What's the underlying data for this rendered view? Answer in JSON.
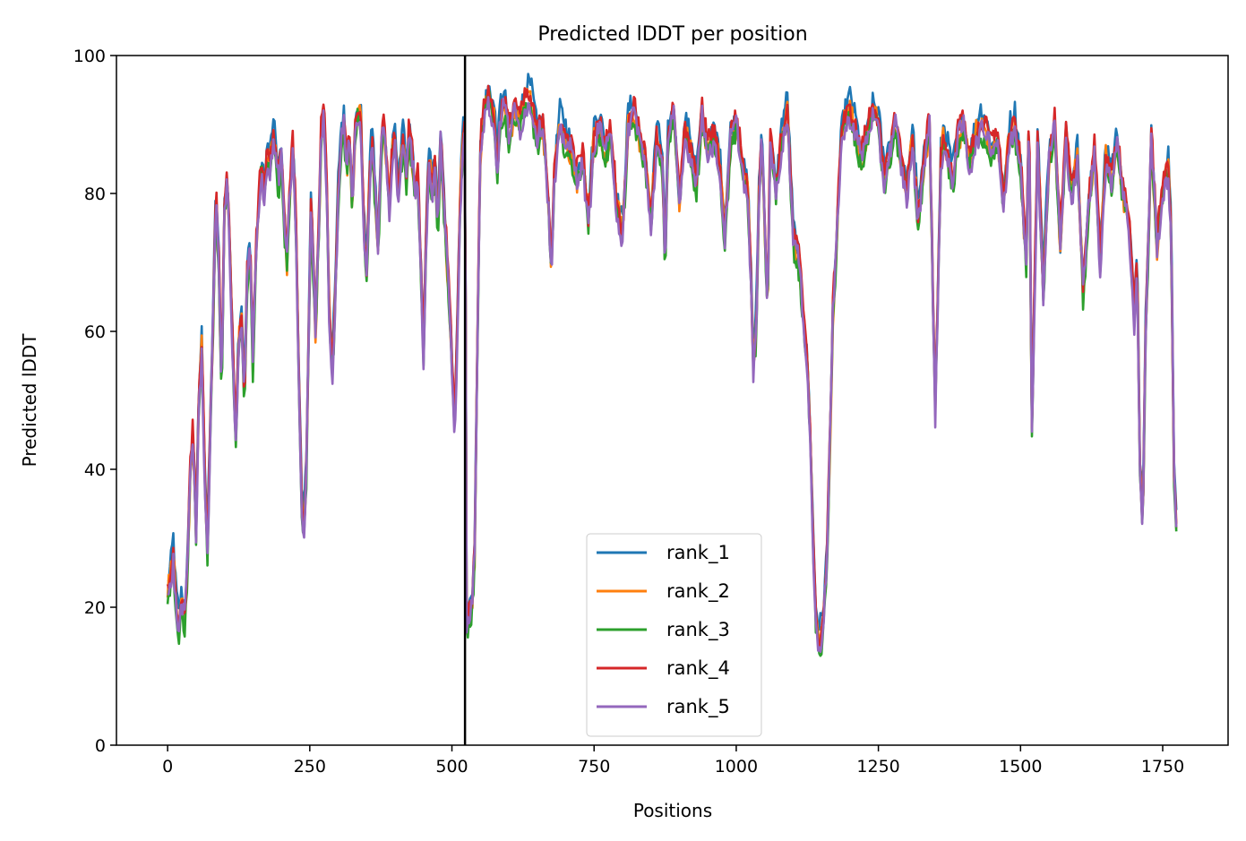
{
  "chart_data": {
    "type": "line",
    "title": "Predicted lDDT per position",
    "xlabel": "Positions",
    "ylabel": "Predicted lDDT",
    "xlim": [
      -90,
      1865
    ],
    "ylim": [
      0,
      100
    ],
    "xticks": [
      0,
      250,
      500,
      750,
      1000,
      1250,
      1500,
      1750
    ],
    "yticks": [
      0,
      20,
      40,
      60,
      80,
      100
    ],
    "xtick_labels": [
      "0",
      "250",
      "500",
      "750",
      "1000",
      "1250",
      "1500",
      "1750"
    ],
    "ytick_labels": [
      "0",
      "20",
      "40",
      "60",
      "80",
      "100"
    ],
    "grid": false,
    "legend_position": "lower-center",
    "vertical_line": {
      "x": 523,
      "color": "#000000"
    },
    "x_range": [
      0,
      1775
    ],
    "base_profile": {
      "x": [
        0,
        5,
        10,
        15,
        20,
        25,
        30,
        35,
        40,
        45,
        50,
        55,
        60,
        65,
        70,
        75,
        80,
        85,
        90,
        95,
        100,
        105,
        110,
        115,
        120,
        125,
        130,
        135,
        140,
        145,
        150,
        155,
        160,
        165,
        170,
        175,
        180,
        185,
        190,
        195,
        200,
        205,
        210,
        215,
        220,
        225,
        228,
        232,
        236,
        240,
        244,
        248,
        252,
        256,
        260,
        265,
        270,
        275,
        280,
        285,
        290,
        295,
        300,
        305,
        310,
        315,
        320,
        325,
        330,
        335,
        340,
        345,
        350,
        355,
        360,
        365,
        370,
        375,
        380,
        385,
        390,
        395,
        400,
        405,
        410,
        415,
        420,
        425,
        430,
        435,
        440,
        445,
        450,
        455,
        460,
        465,
        470,
        475,
        480,
        485,
        490,
        495,
        500,
        505,
        510,
        515,
        520,
        523,
        526,
        530,
        535,
        540,
        545,
        550,
        555,
        560,
        565,
        570,
        575,
        580,
        585,
        590,
        595,
        600,
        610,
        620,
        630,
        640,
        650,
        660,
        670,
        675,
        680,
        690,
        700,
        710,
        720,
        730,
        740,
        750,
        760,
        770,
        780,
        790,
        800,
        810,
        820,
        830,
        840,
        850,
        860,
        870,
        875,
        880,
        890,
        900,
        910,
        920,
        930,
        940,
        950,
        960,
        970,
        980,
        990,
        1000,
        1010,
        1020,
        1025,
        1030,
        1035,
        1040,
        1045,
        1050,
        1055,
        1060,
        1070,
        1080,
        1090,
        1100,
        1110,
        1120,
        1125,
        1130,
        1135,
        1140,
        1145,
        1150,
        1155,
        1160,
        1165,
        1170,
        1175,
        1180,
        1185,
        1190,
        1195,
        1200,
        1210,
        1220,
        1230,
        1240,
        1250,
        1260,
        1270,
        1280,
        1290,
        1300,
        1310,
        1320,
        1330,
        1340,
        1350,
        1360,
        1365,
        1370,
        1380,
        1390,
        1400,
        1410,
        1420,
        1430,
        1440,
        1450,
        1460,
        1470,
        1480,
        1490,
        1500,
        1510,
        1515,
        1520,
        1530,
        1540,
        1550,
        1560,
        1570,
        1580,
        1590,
        1600,
        1610,
        1620,
        1630,
        1640,
        1650,
        1660,
        1670,
        1680,
        1690,
        1700,
        1705,
        1710,
        1715,
        1720,
        1730,
        1740,
        1750,
        1760,
        1765,
        1770,
        1775
      ],
      "y": [
        22,
        24,
        28,
        20,
        17,
        21,
        18,
        26,
        40,
        45,
        30,
        50,
        58,
        40,
        28,
        45,
        62,
        80,
        70,
        50,
        78,
        82,
        70,
        55,
        45,
        58,
        62,
        50,
        68,
        72,
        55,
        70,
        78,
        84,
        80,
        85,
        84,
        88,
        86,
        82,
        85,
        76,
        70,
        80,
        86,
        78,
        65,
        48,
        34,
        31,
        40,
        60,
        78,
        70,
        60,
        72,
        88,
        92,
        80,
        60,
        55,
        65,
        80,
        88,
        90,
        84,
        88,
        78,
        89,
        92,
        90,
        75,
        68,
        82,
        88,
        80,
        72,
        85,
        90,
        84,
        78,
        86,
        88,
        80,
        84,
        88,
        82,
        90,
        85,
        80,
        82,
        70,
        56,
        75,
        85,
        80,
        84,
        75,
        88,
        80,
        72,
        65,
        55,
        45,
        62,
        80,
        88,
        90,
        18,
        19,
        20,
        28,
        60,
        86,
        90,
        93,
        94,
        92,
        90,
        84,
        91,
        93,
        92,
        88,
        92,
        90,
        94,
        93,
        88,
        90,
        78,
        68,
        82,
        90,
        88,
        86,
        82,
        85,
        76,
        88,
        90,
        86,
        88,
        78,
        74,
        90,
        92,
        88,
        84,
        76,
        88,
        84,
        70,
        88,
        92,
        78,
        89,
        86,
        82,
        91,
        86,
        88,
        85,
        74,
        88,
        90,
        84,
        80,
        70,
        55,
        60,
        80,
        88,
        76,
        62,
        88,
        80,
        88,
        92,
        74,
        70,
        60,
        55,
        45,
        30,
        18,
        15,
        16,
        20,
        28,
        45,
        62,
        70,
        80,
        88,
        90,
        91,
        92,
        89,
        85,
        88,
        92,
        90,
        82,
        86,
        90,
        84,
        80,
        88,
        76,
        84,
        90,
        48,
        85,
        88,
        86,
        82,
        88,
        90,
        84,
        88,
        90,
        89,
        86,
        88,
        78,
        88,
        90,
        84,
        70,
        92,
        45,
        88,
        66,
        85,
        90,
        72,
        88,
        80,
        85,
        66,
        78,
        86,
        70,
        85,
        82,
        88,
        80,
        76,
        62,
        70,
        40,
        32,
        60,
        88,
        72,
        80,
        84,
        74,
        40,
        30
      ]
    },
    "series": [
      {
        "name": "rank_1",
        "color": "#1f77b4",
        "offset": 1.5
      },
      {
        "name": "rank_2",
        "color": "#ff7f0e",
        "offset": 0.0
      },
      {
        "name": "rank_3",
        "color": "#2ca02c",
        "offset": -1.0
      },
      {
        "name": "rank_4",
        "color": "#d62728",
        "offset": 1.0
      },
      {
        "name": "rank_5",
        "color": "#9467bd",
        "offset": -0.5
      }
    ]
  }
}
